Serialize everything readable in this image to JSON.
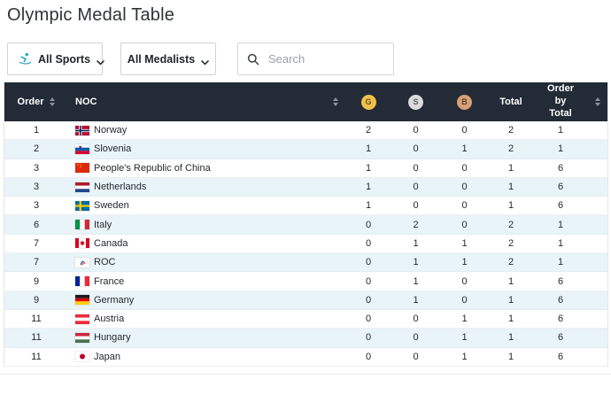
{
  "page": {
    "title": "Olympic Medal Table"
  },
  "filters": {
    "sports": {
      "label": "All Sports",
      "icon": "skier-icon"
    },
    "medalists": {
      "label": "All Medalists"
    },
    "search": {
      "placeholder": "Search",
      "icon": "search-icon"
    }
  },
  "table": {
    "headers": {
      "order": "Order",
      "noc": "NOC",
      "gold": "G",
      "silver": "S",
      "bronze": "B",
      "total": "Total",
      "order_by_total": "Order by Total"
    },
    "colors": {
      "header_bg": "#222b36",
      "alt_row_bg": "#e9f4f9",
      "gold": "#f0c04a",
      "silver": "#d8dadc",
      "bronze": "#d79f74"
    },
    "rows": [
      {
        "order": "1",
        "noc": "Norway",
        "flag": "norway",
        "gold": "2",
        "silver": "0",
        "bronze": "0",
        "total": "2",
        "order_by_total": "1"
      },
      {
        "order": "2",
        "noc": "Slovenia",
        "flag": "slovenia",
        "gold": "1",
        "silver": "0",
        "bronze": "1",
        "total": "2",
        "order_by_total": "1"
      },
      {
        "order": "3",
        "noc": "People's Republic of China",
        "flag": "china",
        "gold": "1",
        "silver": "0",
        "bronze": "0",
        "total": "1",
        "order_by_total": "6"
      },
      {
        "order": "3",
        "noc": "Netherlands",
        "flag": "netherlands",
        "gold": "1",
        "silver": "0",
        "bronze": "0",
        "total": "1",
        "order_by_total": "6"
      },
      {
        "order": "3",
        "noc": "Sweden",
        "flag": "sweden",
        "gold": "1",
        "silver": "0",
        "bronze": "0",
        "total": "1",
        "order_by_total": "6"
      },
      {
        "order": "6",
        "noc": "Italy",
        "flag": "italy",
        "gold": "0",
        "silver": "2",
        "bronze": "0",
        "total": "2",
        "order_by_total": "1"
      },
      {
        "order": "7",
        "noc": "Canada",
        "flag": "canada",
        "gold": "0",
        "silver": "1",
        "bronze": "1",
        "total": "2",
        "order_by_total": "1"
      },
      {
        "order": "7",
        "noc": "ROC",
        "flag": "roc",
        "gold": "0",
        "silver": "1",
        "bronze": "1",
        "total": "2",
        "order_by_total": "1"
      },
      {
        "order": "9",
        "noc": "France",
        "flag": "france",
        "gold": "0",
        "silver": "1",
        "bronze": "0",
        "total": "1",
        "order_by_total": "6"
      },
      {
        "order": "9",
        "noc": "Germany",
        "flag": "germany",
        "gold": "0",
        "silver": "1",
        "bronze": "0",
        "total": "1",
        "order_by_total": "6"
      },
      {
        "order": "11",
        "noc": "Austria",
        "flag": "austria",
        "gold": "0",
        "silver": "0",
        "bronze": "1",
        "total": "1",
        "order_by_total": "6"
      },
      {
        "order": "11",
        "noc": "Hungary",
        "flag": "hungary",
        "gold": "0",
        "silver": "0",
        "bronze": "1",
        "total": "1",
        "order_by_total": "6"
      },
      {
        "order": "11",
        "noc": "Japan",
        "flag": "japan",
        "gold": "0",
        "silver": "0",
        "bronze": "1",
        "total": "1",
        "order_by_total": "6"
      }
    ]
  }
}
